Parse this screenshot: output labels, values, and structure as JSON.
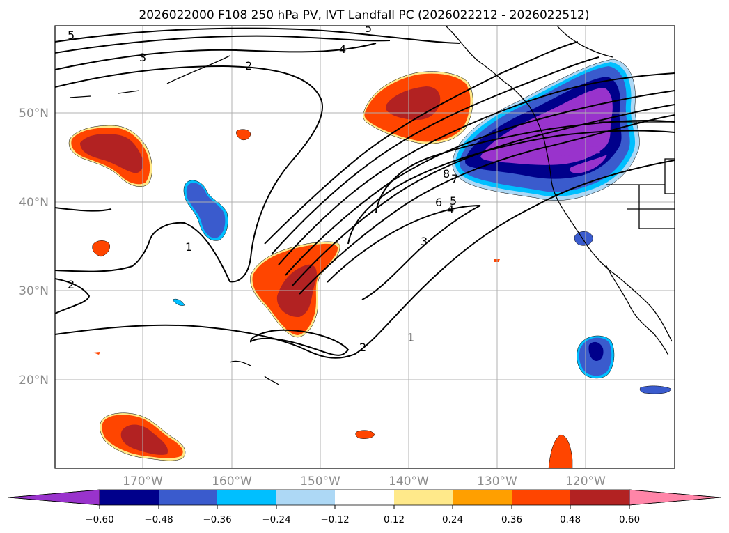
{
  "title": "2026022000 F108 250 hPa PV, IVT Landfall PC (2026022212 - 2026022512)",
  "map": {
    "lat_labels": [
      "50°N",
      "40°N",
      "30°N",
      "20°N"
    ],
    "lon_labels": [
      "170°W",
      "160°W",
      "150°W",
      "140°W",
      "130°W",
      "120°W"
    ]
  },
  "colorbar": {
    "colors": [
      "#9933cc",
      "#00008b",
      "#3a5bcd",
      "#00bfff",
      "#add8f5",
      "#ffffff",
      "#ffe98a",
      "#ff9f00",
      "#ff4500",
      "#b22222",
      "#ff85a8"
    ],
    "tick_labels": [
      "−0.60",
      "−0.48",
      "−0.36",
      "−0.24",
      "−0.12",
      "0.12",
      "0.24",
      "0.36",
      "0.48",
      "0.60"
    ]
  },
  "contour_labels": [
    "5",
    "3",
    "2",
    "4",
    "5",
    "8",
    "7",
    "6",
    "5",
    "4",
    "3",
    "1",
    "2",
    "2",
    "1"
  ],
  "icons": {
    "shaded-field": "pv-anomaly-shading",
    "contours": "ivt-contours",
    "coast": "coastline"
  }
}
